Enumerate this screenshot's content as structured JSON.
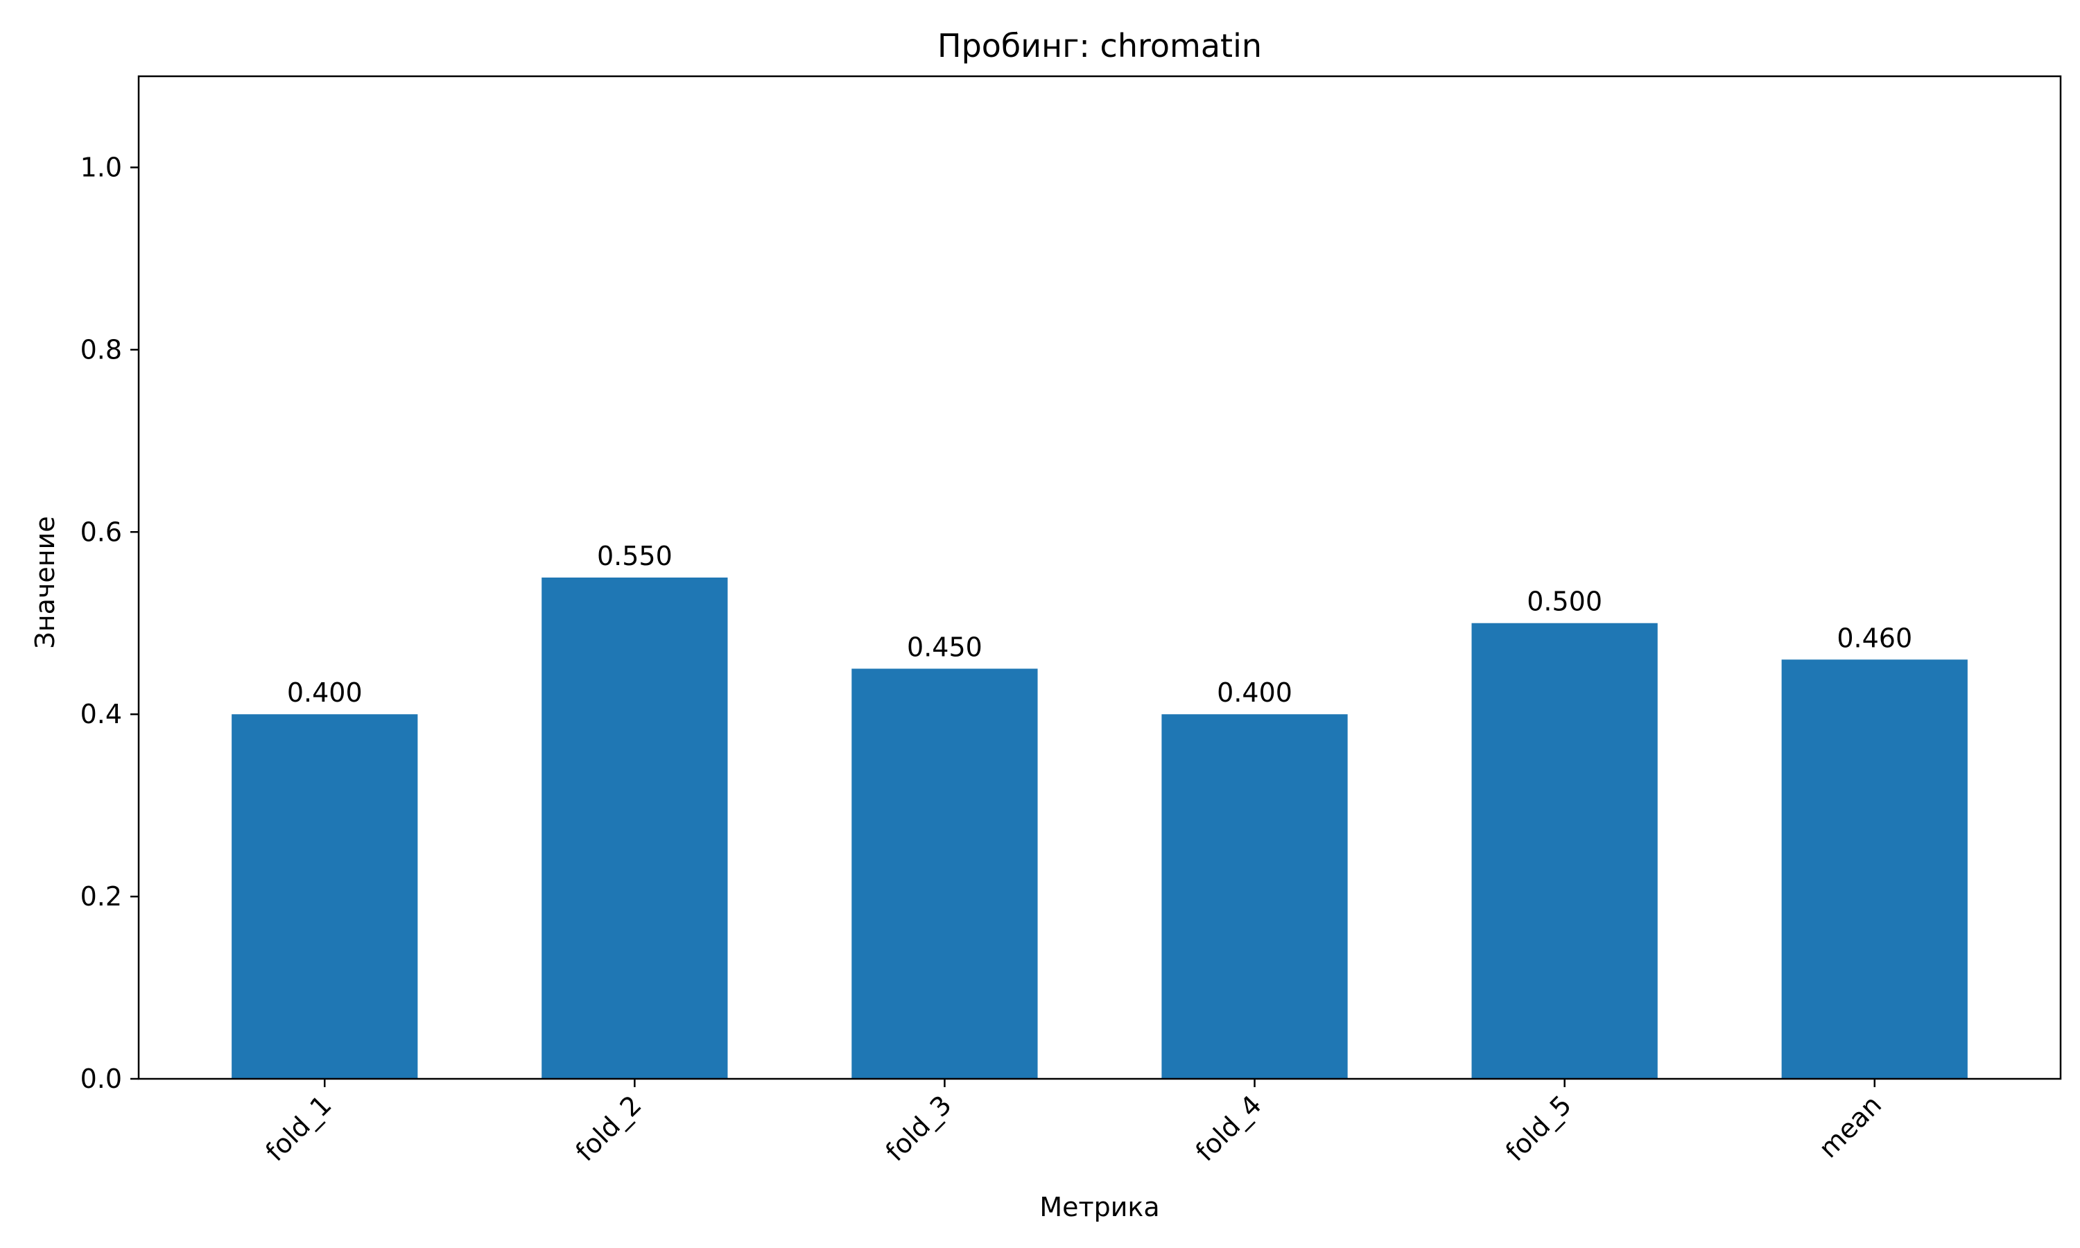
{
  "chart_data": {
    "type": "bar",
    "title": "Пробинг: chromatin",
    "xlabel": "Метрика",
    "ylabel": "Значение",
    "categories": [
      "fold_1",
      "fold_2",
      "fold_3",
      "fold_4",
      "fold_5",
      "mean"
    ],
    "values": [
      0.4,
      0.55,
      0.45,
      0.4,
      0.5,
      0.46
    ],
    "data_labels": [
      "0.400",
      "0.550",
      "0.450",
      "0.400",
      "0.500",
      "0.460"
    ],
    "ylim": [
      0,
      1.1
    ],
    "yticks": [
      0.0,
      0.2,
      0.4,
      0.6,
      0.8,
      1.0
    ],
    "ytick_labels": [
      "0.0",
      "0.2",
      "0.4",
      "0.6",
      "0.8",
      "1.0"
    ],
    "bar_color": "#1f77b4",
    "grid": false,
    "legend": "none"
  }
}
